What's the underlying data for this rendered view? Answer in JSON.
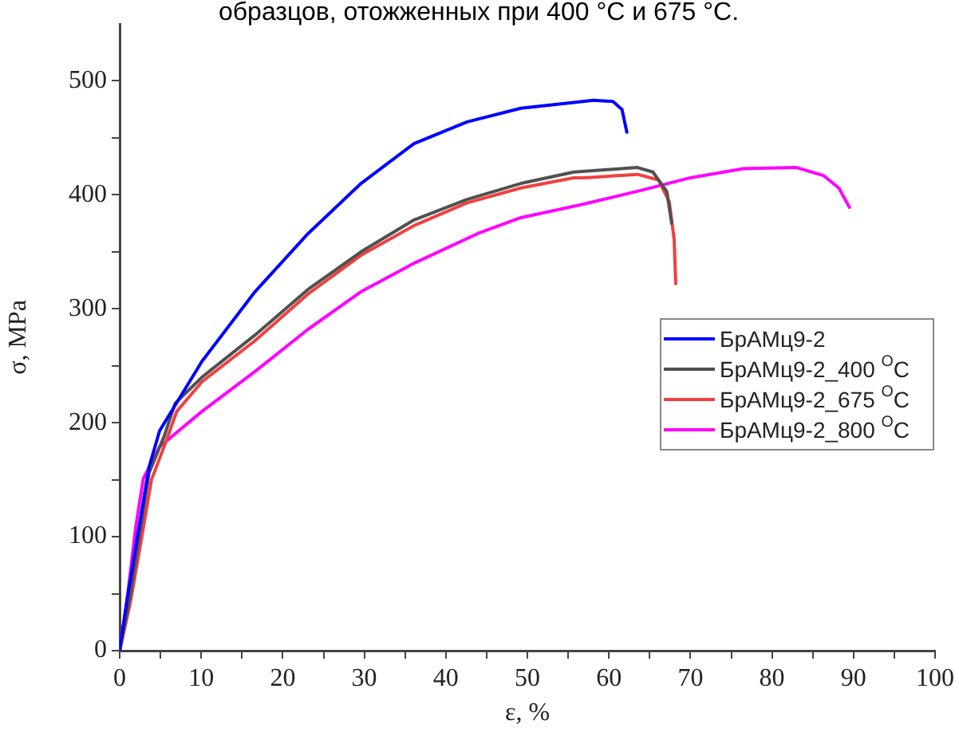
{
  "chart_data": {
    "type": "line",
    "title": "образцов, отожженных при 400 °С и 675 °С.",
    "xlabel": "ε, %",
    "ylabel": "σ, MPa",
    "xlim": [
      0,
      100
    ],
    "ylim": [
      0,
      550
    ],
    "xticks": [
      0,
      {
        "value": 5,
        "label": null
      },
      10,
      {
        "value": 15,
        "label": null
      },
      20,
      {
        "value": 25,
        "label": null
      },
      30,
      {
        "value": 35,
        "label": null
      },
      40,
      {
        "value": 45,
        "label": null
      },
      50,
      {
        "value": 55,
        "label": null
      },
      60,
      {
        "value": 65,
        "label": null
      },
      70,
      {
        "value": 75,
        "label": null
      },
      80,
      {
        "value": 85,
        "label": null
      },
      90,
      {
        "value": 95,
        "label": null
      },
      100
    ],
    "yticks": [
      0,
      {
        "value": 50,
        "label": null
      },
      100,
      {
        "value": 150,
        "label": null
      },
      200,
      {
        "value": 250,
        "label": null
      },
      300,
      {
        "value": 350,
        "label": null
      },
      400,
      {
        "value": 450,
        "label": null
      },
      500
    ],
    "grid": false,
    "legend": "center right",
    "marker": "none",
    "line_style": "solid",
    "series": [
      {
        "name": "БрАМц9-2",
        "color": "#0000ff",
        "x": [
          0,
          1.0,
          2.3,
          3.6,
          4.9,
          10.1,
          16.6,
          23.1,
          29.6,
          36.1,
          42.6,
          49.2,
          55.7,
          58.1,
          60.5,
          61.6,
          62.2
        ],
        "values": [
          0,
          49,
          105,
          161,
          193,
          254,
          315,
          366,
          410,
          445,
          464,
          476,
          481,
          483,
          482,
          475,
          455
        ]
      },
      {
        "name": "БрАМц9-2_400 $^{O}$C",
        "color": "#505050",
        "x": [
          0,
          1.2,
          2.4,
          3.6,
          5.5,
          6.8,
          10.1,
          16.6,
          23.1,
          29.6,
          36.1,
          42.6,
          49.2,
          55.7,
          63.5,
          65.4,
          67.1,
          67.7
        ],
        "values": [
          0,
          45,
          100,
          156,
          189,
          217,
          240,
          277,
          317,
          350,
          378,
          396,
          410,
          420,
          424,
          420,
          403,
          375
        ]
      },
      {
        "name": "БрАМц9-2_675 $^{O}$C",
        "color": "#f04040",
        "x": [
          0,
          1.3,
          2.6,
          3.9,
          5.6,
          7.0,
          10.1,
          16.6,
          23.1,
          29.6,
          36.1,
          42.6,
          49.2,
          55.7,
          57,
          63.5,
          66.1,
          67.4,
          68.0,
          68.2
        ],
        "values": [
          0,
          42,
          95,
          150,
          182,
          210,
          236,
          272,
          313,
          347,
          373,
          393,
          406,
          415,
          415,
          418,
          413,
          394,
          361,
          322
        ]
      },
      {
        "name": "БрАМц9-2_800 $^{O}$C",
        "color": "#ff00ff",
        "x": [
          0,
          1.0,
          2.0,
          2.9,
          4.9,
          10.1,
          11.4,
          16.6,
          23.1,
          29.6,
          36.1,
          43.9,
          49.2,
          57,
          64,
          70,
          76.5,
          83,
          86.3,
          88.2,
          89.5
        ],
        "values": [
          0,
          50,
          110,
          151,
          179,
          210,
          217,
          245,
          282,
          315,
          340,
          366,
          380,
          392,
          404,
          415,
          423,
          424,
          417,
          406,
          389
        ]
      }
    ]
  }
}
